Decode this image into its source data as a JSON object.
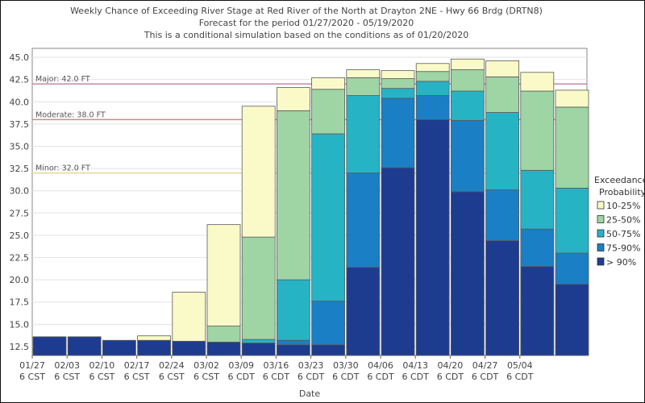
{
  "chart_data": {
    "type": "bar",
    "stacked": true,
    "title": "Weekly Chance of Exceeding River Stage at Red River of the North at Drayton 2NE - Hwy 66 Brdg (DRTN8)",
    "subtitle": "Forecast for the period 01/27/2020 - 05/19/2020",
    "subtitle2": "This is a conditional simulation based on the conditions as of 01/20/2020",
    "xlabel": "Date",
    "ylabel": "",
    "ylim": [
      11.5,
      46.0
    ],
    "yticks": [
      "12.5",
      "15.0",
      "17.5",
      "20.0",
      "22.5",
      "25.0",
      "27.5",
      "30.0",
      "32.5",
      "35.0",
      "37.5",
      "40.0",
      "42.5",
      "45.0"
    ],
    "categories": [
      [
        "01/27",
        "6 CST"
      ],
      [
        "02/03",
        "6 CST"
      ],
      [
        "02/10",
        "6 CST"
      ],
      [
        "02/17",
        "6 CST"
      ],
      [
        "02/24",
        "6 CST"
      ],
      [
        "03/02",
        "6 CST"
      ],
      [
        "03/09",
        "6 CDT"
      ],
      [
        "03/16",
        "6 CDT"
      ],
      [
        "03/23",
        "6 CDT"
      ],
      [
        "03/30",
        "6 CDT"
      ],
      [
        "04/06",
        "6 CDT"
      ],
      [
        "04/13",
        "6 CDT"
      ],
      [
        "04/20",
        "6 CDT"
      ],
      [
        "04/27",
        "6 CDT"
      ],
      [
        "05/04",
        "6 CDT"
      ],
      [
        "",
        ""
      ],
      [
        "",
        ""
      ]
    ],
    "thresholds": [
      {
        "label": "Major: 42.0 FT",
        "value": 42.0,
        "color": "#c48aa3"
      },
      {
        "label": "Moderate: 38.0 FT",
        "value": 38.0,
        "color": "#d98585"
      },
      {
        "label": "Minor: 32.0 FT",
        "value": 32.0,
        "color": "#e8d68c"
      }
    ],
    "legend": {
      "title": "Exceedance",
      "title2": "Probability",
      "position": "right",
      "items": [
        {
          "label": "10-25%",
          "color": "#fafac8"
        },
        {
          "label": "25-50%",
          "color": "#9fd4a4"
        },
        {
          "label": "50-75%",
          "color": "#26b3c4"
        },
        {
          "label": "75-90%",
          "color": "#1a7fc4"
        },
        {
          "label": "> 90%",
          "color": "#1e3c8f"
        }
      ]
    },
    "series_order": [
      "> 90%",
      "75-90%",
      "50-75%",
      "25-50%",
      "10-25%"
    ],
    "stage_bounds": [
      [
        13.6,
        13.6,
        13.6,
        13.6,
        13.6,
        13.6
      ],
      [
        13.6,
        13.6,
        13.6,
        13.6,
        13.6,
        13.6
      ],
      [
        13.2,
        13.2,
        13.2,
        13.2,
        13.2,
        13.2
      ],
      [
        13.2,
        13.2,
        13.2,
        13.2,
        13.2,
        13.7
      ],
      [
        13.1,
        13.1,
        13.1,
        13.1,
        13.1,
        18.6
      ],
      [
        13.0,
        13.0,
        13.0,
        13.0,
        14.8,
        26.2
      ],
      [
        12.9,
        12.9,
        12.9,
        13.3,
        24.8,
        39.5
      ],
      [
        12.7,
        12.7,
        13.2,
        20.0,
        39.0,
        41.6
      ],
      [
        12.7,
        12.7,
        17.6,
        36.4,
        41.4,
        42.7
      ],
      [
        12.7,
        21.4,
        32.0,
        40.7,
        42.7,
        43.6
      ],
      [
        12.7,
        32.6,
        40.4,
        41.5,
        42.6,
        43.5
      ],
      [
        12.7,
        38.0,
        40.7,
        42.3,
        43.4,
        44.3
      ],
      [
        12.7,
        29.9,
        37.9,
        41.2,
        43.6,
        44.8
      ],
      [
        12.7,
        24.4,
        30.1,
        38.8,
        42.8,
        44.6
      ],
      [
        12.7,
        21.5,
        25.7,
        32.3,
        41.2,
        43.3
      ],
      [
        12.7,
        19.5,
        23.0,
        30.3,
        39.4,
        41.3
      ]
    ]
  }
}
